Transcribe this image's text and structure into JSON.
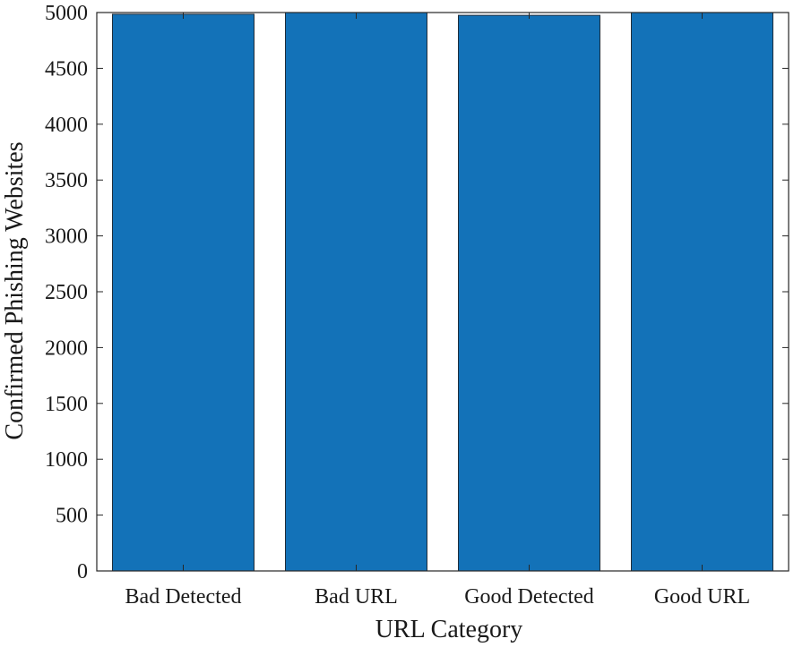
{
  "chart_data": {
    "type": "bar",
    "categories": [
      "Bad Detected",
      "Bad URL",
      "Good Detected",
      "Good URL"
    ],
    "values": [
      4985,
      5000,
      4975,
      5000
    ],
    "xlabel": "URL Category",
    "ylabel": "Confirmed Phishing Websites",
    "ylim": [
      0,
      5000
    ],
    "yticks": [
      0,
      500,
      1000,
      1500,
      2000,
      2500,
      3000,
      3500,
      4000,
      4500,
      5000
    ],
    "grid": false,
    "legend": "none",
    "bar_color": "#1372b8"
  }
}
